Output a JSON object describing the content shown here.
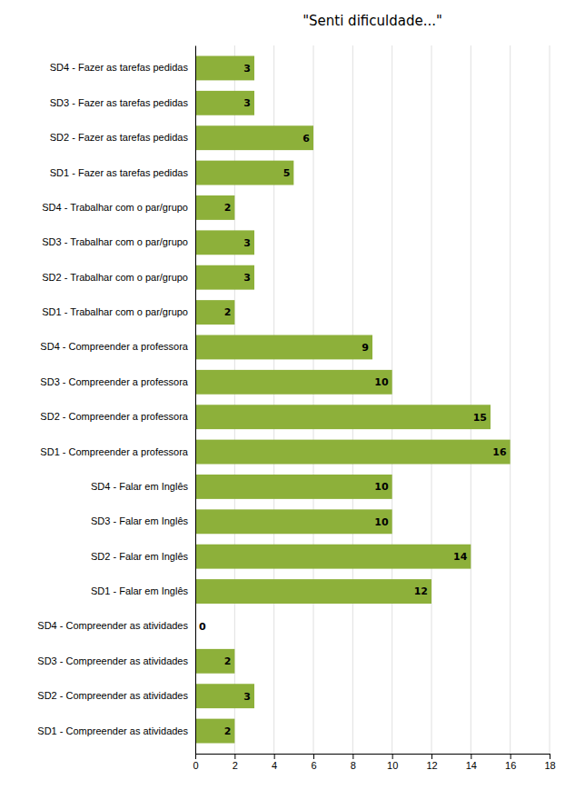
{
  "chart_data": {
    "type": "bar",
    "orientation": "horizontal",
    "title": "\"Senti dificuldade...\"",
    "categories": [
      "SD4 - Fazer as tarefas pedidas",
      "SD3 - Fazer as tarefas pedidas",
      "SD2 - Fazer as tarefas pedidas",
      "SD1 - Fazer as tarefas pedidas",
      "SD4 - Trabalhar com o par/grupo",
      "SD3 - Trabalhar com o par/grupo",
      "SD2 - Trabalhar com o par/grupo",
      "SD1 - Trabalhar com o par/grupo",
      "SD4 - Compreender a professora",
      "SD3 - Compreender a professora",
      "SD2 - Compreender a professora",
      "SD1 - Compreender a professora",
      "SD4 - Falar em Inglês",
      "SD3 - Falar em Inglês",
      "SD2 - Falar em Inglês",
      "SD1 - Falar em Inglês",
      "SD4 - Compreender as atividades",
      "SD3 - Compreender as atividades",
      "SD2 - Compreender as atividades",
      "SD1 - Compreender as atividades"
    ],
    "values": [
      3,
      3,
      6,
      5,
      2,
      3,
      3,
      2,
      9,
      10,
      15,
      16,
      10,
      10,
      14,
      12,
      0,
      2,
      3,
      2
    ],
    "color": "#8db03a",
    "xlim": [
      0,
      18
    ],
    "xticks": [
      0,
      2,
      4,
      6,
      8,
      10,
      12,
      14,
      16,
      18
    ],
    "grid": true,
    "data_labels": true
  }
}
